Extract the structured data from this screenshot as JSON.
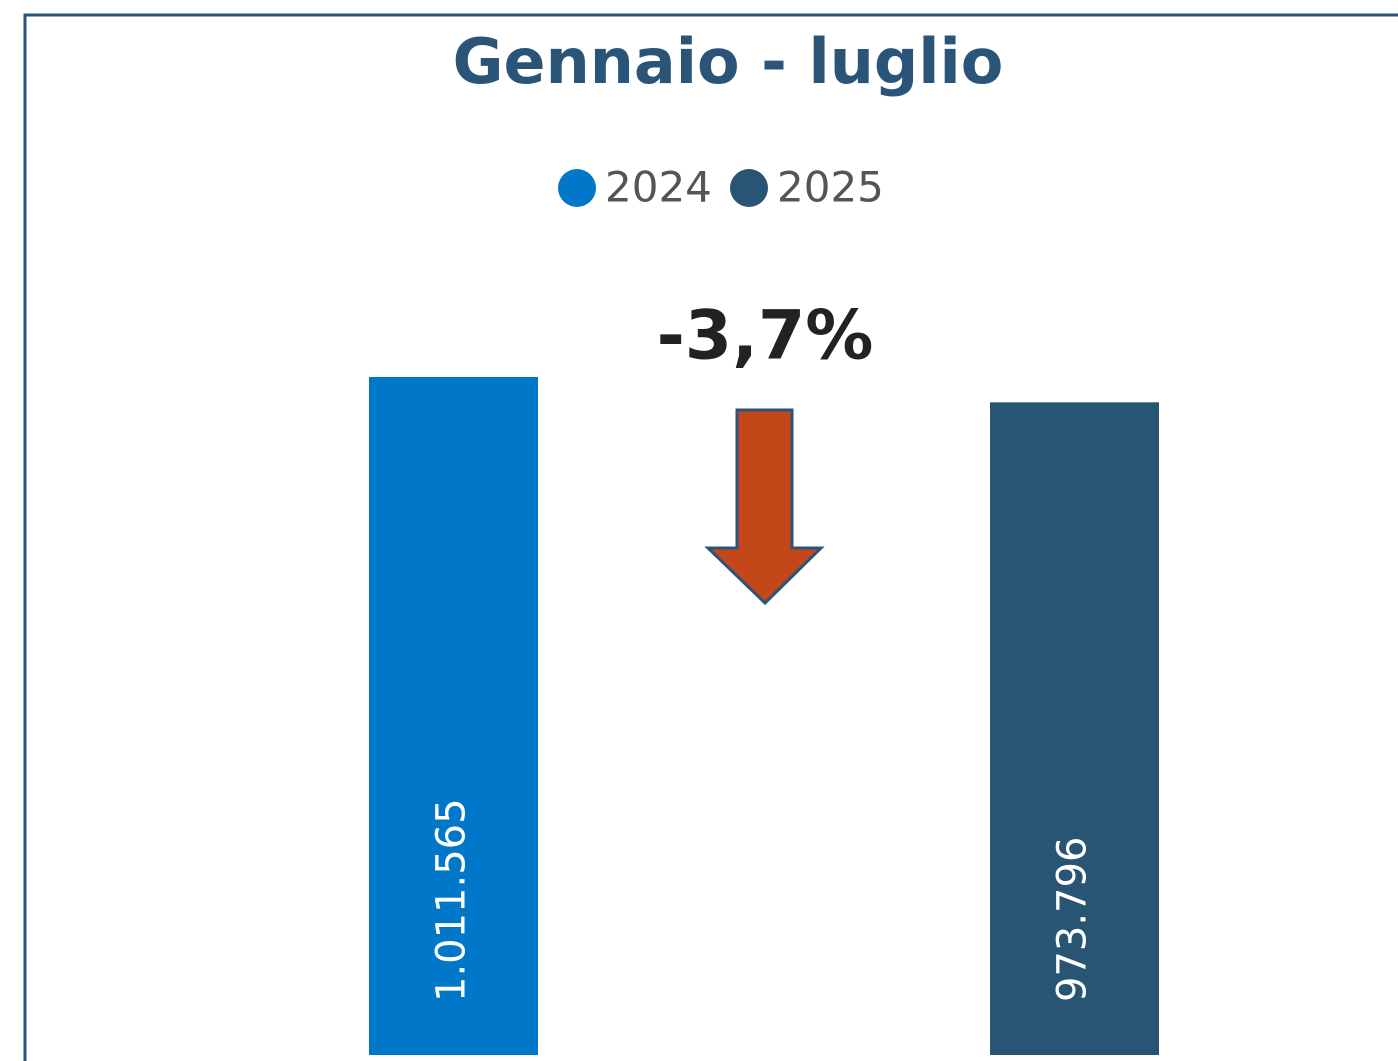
{
  "chart_data": {
    "type": "bar",
    "title": "Gennaio - luglio",
    "annotation": "-3,7%",
    "series": [
      {
        "name": "2024",
        "color": "#0077c8",
        "values": [
          1011565
        ],
        "value_labels": [
          "1.011.565"
        ]
      },
      {
        "name": "2025",
        "color": "#285573",
        "values": [
          973796
        ],
        "value_labels": [
          "973.796"
        ]
      }
    ],
    "legend": "top"
  }
}
